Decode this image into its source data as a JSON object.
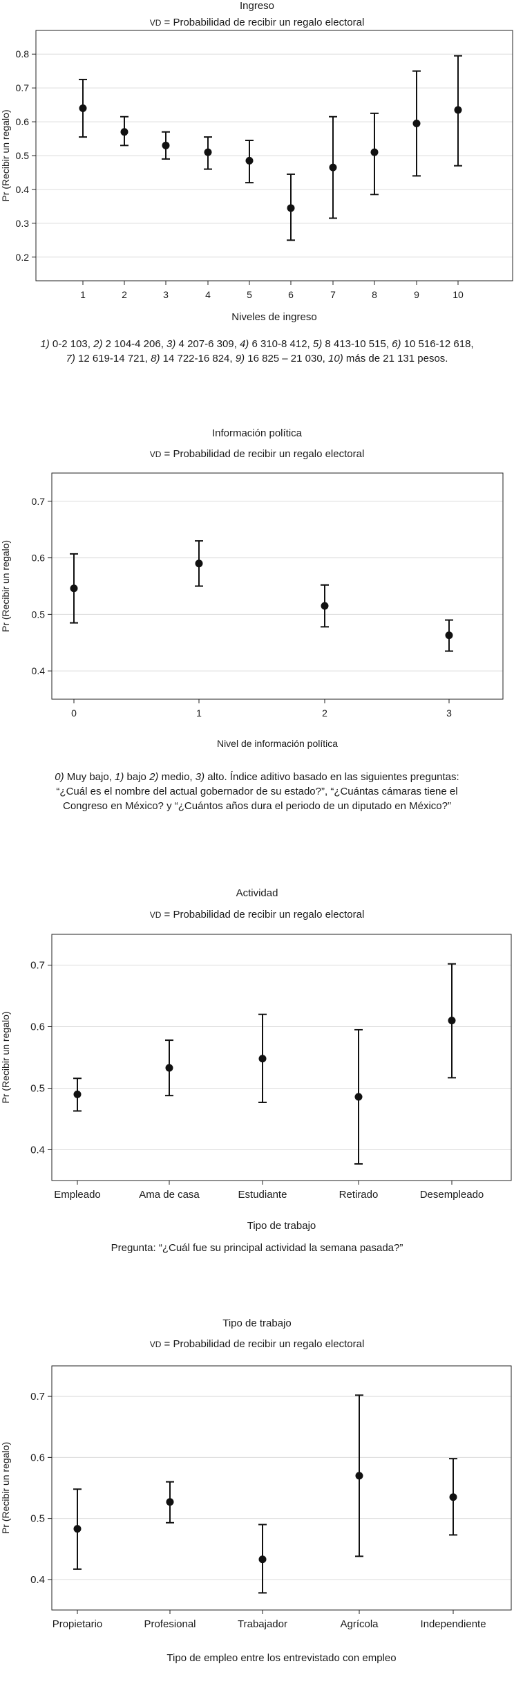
{
  "subtitle_prefix": "VD",
  "subtitle_rest": " = Probabilidad de recibir un regalo electoral",
  "chart_data": [
    {
      "type": "scatter",
      "error_bars": true,
      "title": "Ingreso",
      "xlabel": "Niveles de ingreso",
      "ylabel": "Pr (Recibir un regalo)",
      "ylim": [
        0.13,
        0.87
      ],
      "yticks": [
        "0.2",
        "0.3",
        "0.4",
        "0.5",
        "0.6",
        "0.7",
        "0.8"
      ],
      "categories": [
        "1",
        "2",
        "3",
        "4",
        "5",
        "6",
        "7",
        "8",
        "9",
        "10"
      ],
      "values": [
        0.64,
        0.57,
        0.53,
        0.51,
        0.485,
        0.345,
        0.465,
        0.51,
        0.595,
        0.635
      ],
      "lower": [
        0.555,
        0.53,
        0.49,
        0.46,
        0.42,
        0.25,
        0.315,
        0.385,
        0.44,
        0.47
      ],
      "upper": [
        0.725,
        0.615,
        0.57,
        0.555,
        0.545,
        0.445,
        0.615,
        0.625,
        0.75,
        0.795
      ],
      "grid": true,
      "note": [
        {
          "i": "1)",
          "t": " 0-2 103, "
        },
        {
          "i": "2)",
          "t": " 2 104-4 206, "
        },
        {
          "i": "3)",
          "t": " 4 207-6 309, "
        },
        {
          "i": "4)",
          "t": " 6 310-8 412, "
        },
        {
          "i": "5)",
          "t": " 8 413-10 515, "
        },
        {
          "i": "6)",
          "t": " 10 516-12 618,"
        },
        {
          "br": true
        },
        {
          "i": "7)",
          "t": " 12 619-14 721, "
        },
        {
          "i": "8)",
          "t": " 14 722-16 824, "
        },
        {
          "i": "9)",
          "t": " 16 825 – 21 030, "
        },
        {
          "i": "10)",
          "t": " más de 21 131 pesos."
        }
      ]
    },
    {
      "type": "scatter",
      "error_bars": true,
      "title": "Información política",
      "xlabel": "Nivel de información política",
      "ylabel": "Pr (Recibir un regalo)",
      "ylim": [
        0.35,
        0.75
      ],
      "yticks": [
        "0.4",
        "0.5",
        "0.6",
        "0.7"
      ],
      "categories": [
        "0",
        "1",
        "2",
        "3"
      ],
      "values": [
        0.546,
        0.59,
        0.515,
        0.463
      ],
      "lower": [
        0.485,
        0.55,
        0.478,
        0.435
      ],
      "upper": [
        0.607,
        0.63,
        0.552,
        0.49
      ],
      "grid": true,
      "note": [
        {
          "i": "0)",
          "t": " Muy bajo, "
        },
        {
          "i": "1)",
          "t": " bajo "
        },
        {
          "i": "2)",
          "t": " medio, "
        },
        {
          "i": "3)",
          "t": " alto. Índice aditivo basado en las siguientes preguntas:"
        },
        {
          "br": true
        },
        {
          "t": "“¿Cuál es el nombre del actual gobernador de su estado?”, “¿Cuántas cámaras tiene el"
        },
        {
          "br": true
        },
        {
          "t": "Congreso en México? y “¿Cuántos años dura el periodo de un diputado en México?”"
        }
      ]
    },
    {
      "type": "scatter",
      "error_bars": true,
      "title": "Actividad",
      "xlabel": "Tipo de trabajo",
      "ylabel": "Pr (Recibir un regalo)",
      "ylim": [
        0.35,
        0.75
      ],
      "yticks": [
        "0.4",
        "0.5",
        "0.6",
        "0.7"
      ],
      "categories": [
        "Empleado",
        "Ama de casa",
        "Estudiante",
        "Retirado",
        "Desempleado"
      ],
      "values": [
        0.49,
        0.533,
        0.548,
        0.486,
        0.61
      ],
      "lower": [
        0.463,
        0.488,
        0.477,
        0.377,
        0.517
      ],
      "upper": [
        0.516,
        0.578,
        0.62,
        0.595,
        0.702
      ],
      "grid": true,
      "note": [
        {
          "t": "Pregunta: “¿Cuál fue su principal actividad la semana pasada?”"
        }
      ]
    },
    {
      "type": "scatter",
      "error_bars": true,
      "title": "Tipo de trabajo",
      "xlabel": "Tipo de empleo entre los entrevistado con empleo",
      "ylabel": "Pr (Recibir un regalo)",
      "ylim": [
        0.35,
        0.75
      ],
      "yticks": [
        "0.4",
        "0.5",
        "0.6",
        "0.7"
      ],
      "categories": [
        "Propietario",
        "Profesional",
        "Trabajador",
        "Agrícola",
        "Independiente"
      ],
      "values": [
        0.483,
        0.527,
        0.433,
        0.57,
        0.535
      ],
      "lower": [
        0.417,
        0.493,
        0.378,
        0.438,
        0.473
      ],
      "upper": [
        0.548,
        0.56,
        0.49,
        0.702,
        0.598
      ],
      "grid": true,
      "note": []
    }
  ]
}
